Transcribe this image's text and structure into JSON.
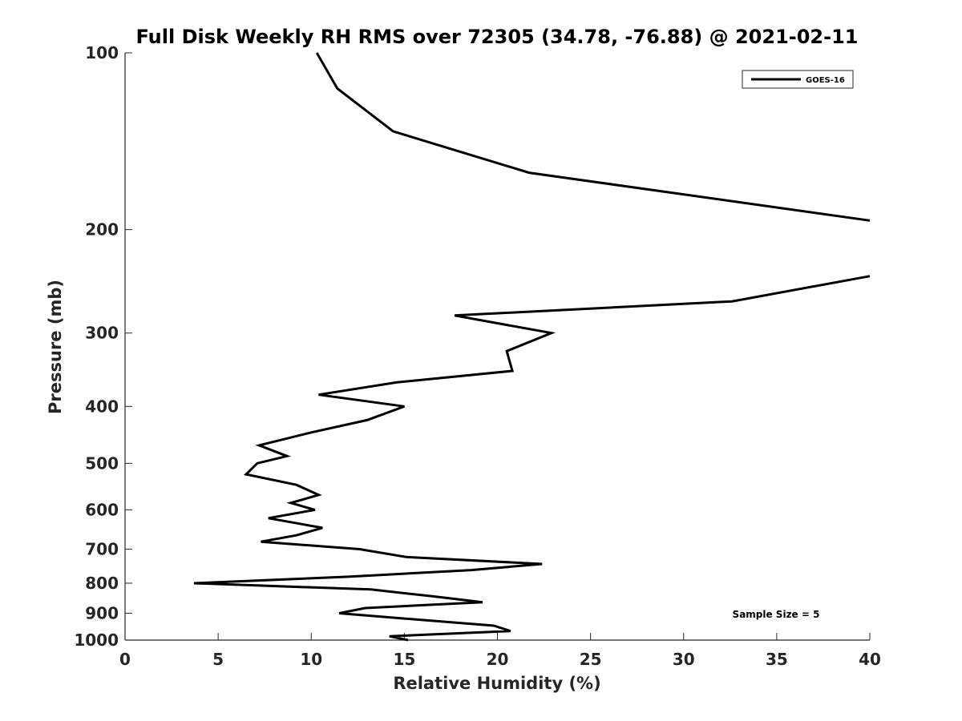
{
  "chart_data": {
    "type": "line",
    "title": "Full Disk Weekly RH RMS over 72305 (34.78, -76.88) @ 2021-02-11",
    "xlabel": "Relative Humidity (%)",
    "ylabel": "Pressure (mb)",
    "xlim": [
      0,
      40
    ],
    "ylim": [
      100,
      1000
    ],
    "yscale": "log",
    "grid": false,
    "legend_placement": "top-right",
    "x_ticks": [
      "0",
      "5",
      "10",
      "15",
      "20",
      "25",
      "30",
      "35",
      "40"
    ],
    "y_ticks": [
      "100",
      "200",
      "300",
      "400",
      "500",
      "600",
      "700",
      "800",
      "900",
      "1000"
    ],
    "annotation": "Sample Size = 5",
    "series": [
      {
        "name": "GOES-16",
        "color": "#000000",
        "segments": [
          [
            {
              "x": 10.3,
              "y": 100
            },
            {
              "x": 11.4,
              "y": 115
            },
            {
              "x": 14.4,
              "y": 136
            },
            {
              "x": 21.7,
              "y": 160
            },
            {
              "x": 40.0,
              "y": 193
            }
          ],
          [
            {
              "x": 40.0,
              "y": 240
            },
            {
              "x": 32.6,
              "y": 265
            },
            {
              "x": 17.7,
              "y": 280
            },
            {
              "x": 22.9,
              "y": 300
            },
            {
              "x": 20.5,
              "y": 322
            },
            {
              "x": 20.8,
              "y": 348
            },
            {
              "x": 14.6,
              "y": 364
            },
            {
              "x": 10.4,
              "y": 382
            },
            {
              "x": 15.0,
              "y": 400
            },
            {
              "x": 13.0,
              "y": 422
            },
            {
              "x": 10.0,
              "y": 443
            },
            {
              "x": 7.2,
              "y": 466
            },
            {
              "x": 8.7,
              "y": 486
            },
            {
              "x": 7.1,
              "y": 500
            },
            {
              "x": 6.5,
              "y": 522
            },
            {
              "x": 9.2,
              "y": 544
            },
            {
              "x": 10.4,
              "y": 566
            },
            {
              "x": 8.9,
              "y": 584
            },
            {
              "x": 10.2,
              "y": 600
            },
            {
              "x": 7.7,
              "y": 620
            },
            {
              "x": 10.6,
              "y": 644
            },
            {
              "x": 9.2,
              "y": 663
            },
            {
              "x": 7.3,
              "y": 680
            },
            {
              "x": 12.6,
              "y": 700
            },
            {
              "x": 15.1,
              "y": 722
            },
            {
              "x": 22.4,
              "y": 742
            },
            {
              "x": 18.6,
              "y": 760
            },
            {
              "x": 12.0,
              "y": 780
            },
            {
              "x": 3.7,
              "y": 800
            },
            {
              "x": 13.2,
              "y": 820
            },
            {
              "x": 16.5,
              "y": 842
            },
            {
              "x": 19.2,
              "y": 862
            },
            {
              "x": 12.9,
              "y": 882
            },
            {
              "x": 11.5,
              "y": 900
            },
            {
              "x": 15.9,
              "y": 924
            },
            {
              "x": 19.8,
              "y": 945
            },
            {
              "x": 20.7,
              "y": 965
            },
            {
              "x": 14.2,
              "y": 985
            },
            {
              "x": 15.2,
              "y": 1000
            }
          ]
        ]
      }
    ]
  }
}
